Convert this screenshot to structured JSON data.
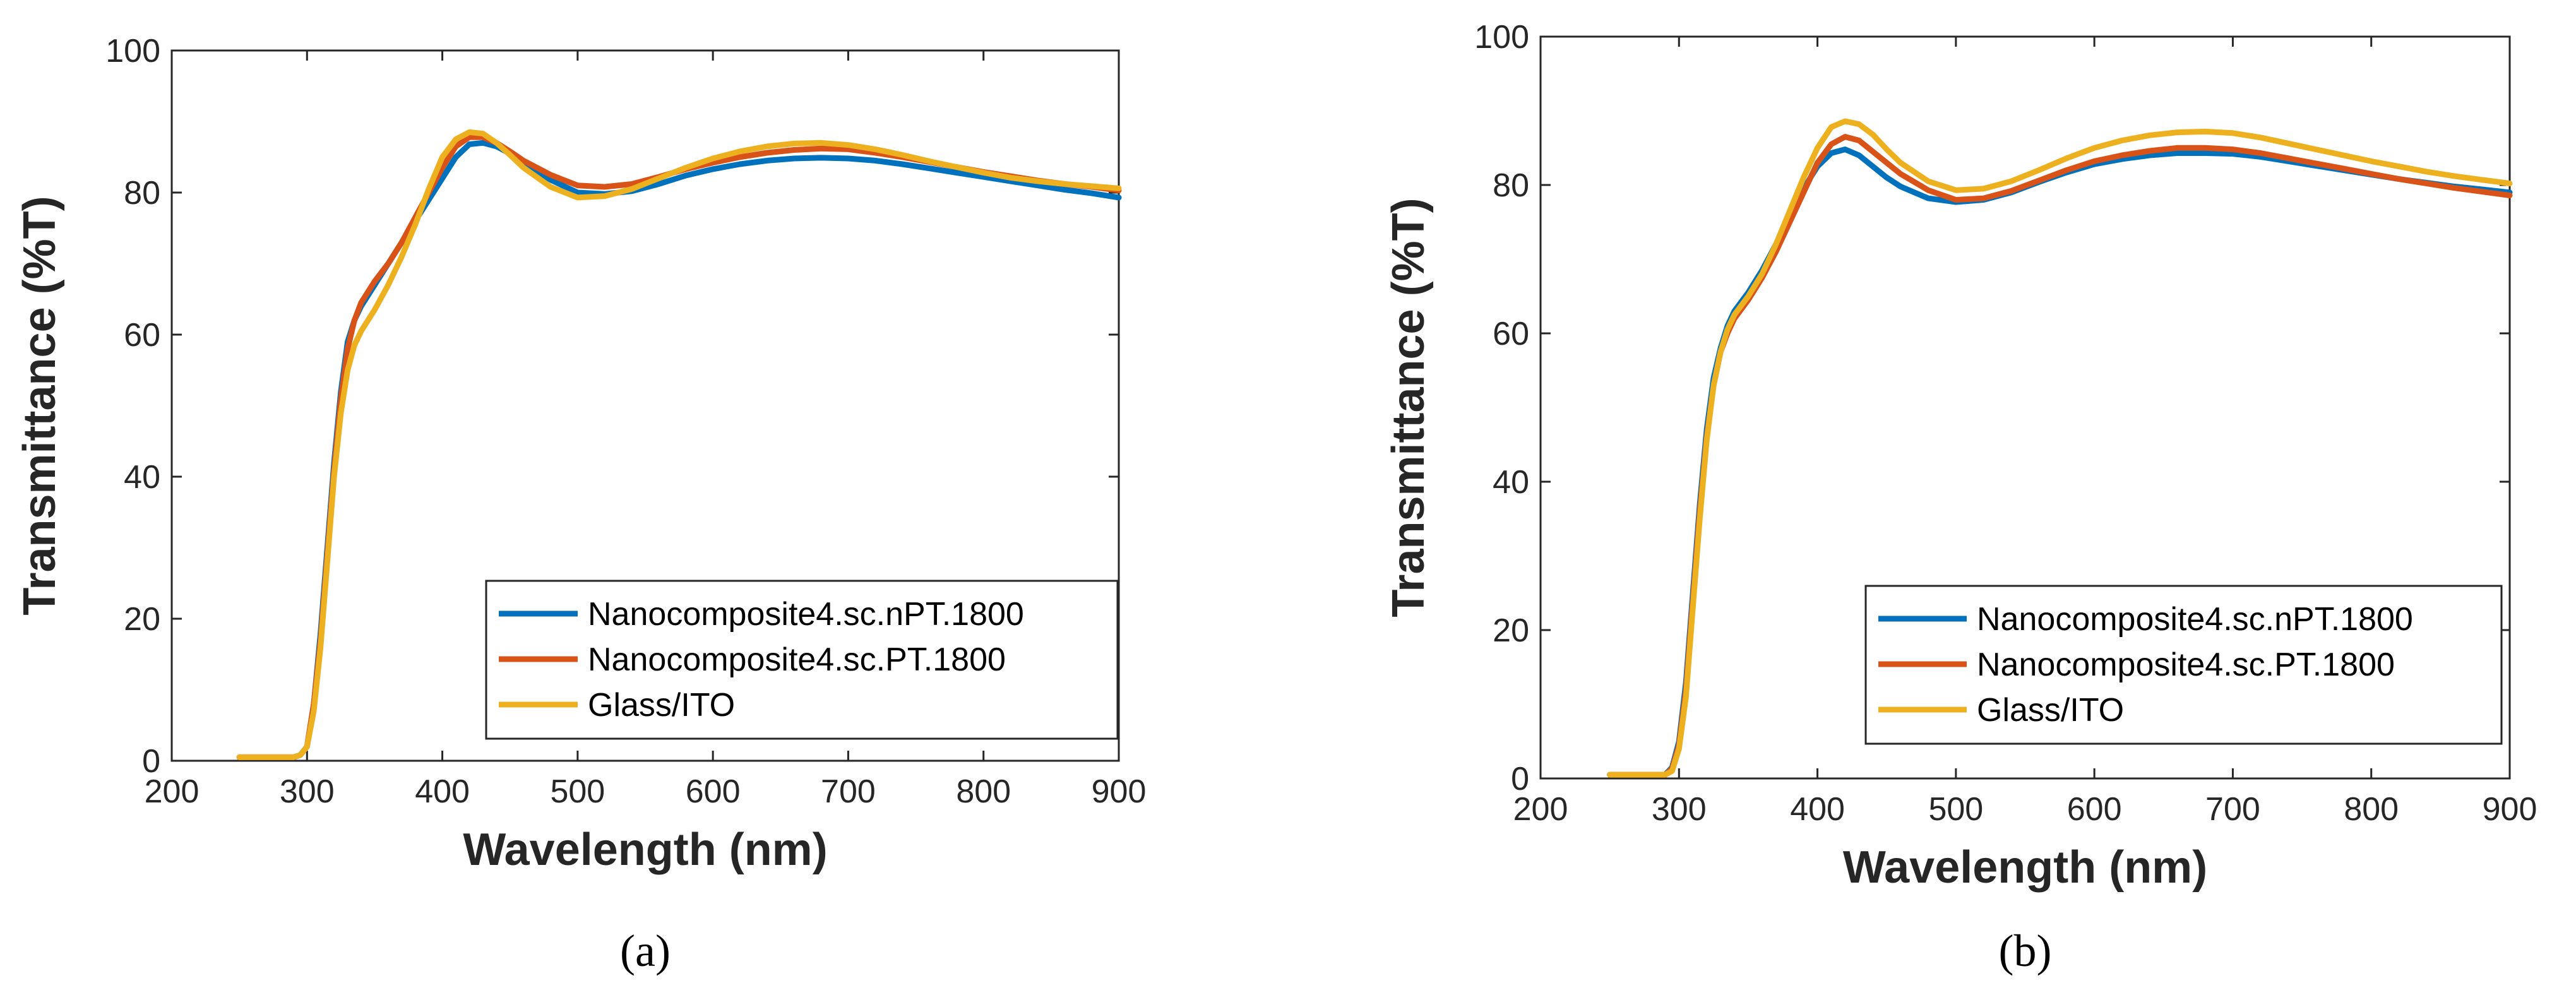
{
  "chart_data": [
    {
      "type": "line",
      "panel_label": "(a)",
      "title": "",
      "xlabel": "Wavelength (nm)",
      "ylabel": "Transmittance (%T)",
      "xlim": [
        200,
        900
      ],
      "ylim": [
        0,
        100
      ],
      "xticks": [
        200,
        300,
        400,
        500,
        600,
        700,
        800,
        900
      ],
      "yticks": [
        0,
        20,
        40,
        60,
        80,
        100
      ],
      "grid": false,
      "legend_position": "bottom-right",
      "series": [
        {
          "name": "Nanocomposite4.sc.nPT.1800",
          "color": "#0072BD",
          "x": [
            250,
            280,
            290,
            295,
            300,
            305,
            310,
            315,
            320,
            325,
            330,
            335,
            340,
            350,
            360,
            370,
            380,
            390,
            400,
            410,
            420,
            430,
            440,
            450,
            460,
            480,
            500,
            520,
            540,
            560,
            580,
            600,
            620,
            640,
            660,
            680,
            700,
            720,
            740,
            760,
            780,
            800,
            820,
            840,
            860,
            880,
            900
          ],
          "y": [
            0.5,
            0.5,
            0.5,
            0.8,
            2,
            8,
            18,
            30,
            42,
            52,
            59,
            62,
            64,
            67,
            70,
            73,
            76,
            79,
            82,
            85,
            86.8,
            87,
            86.5,
            85.5,
            84,
            81.8,
            80,
            79.8,
            80.2,
            81.2,
            82.4,
            83.3,
            84,
            84.5,
            84.8,
            84.9,
            84.8,
            84.5,
            84,
            83.4,
            82.8,
            82.2,
            81.6,
            81,
            80.4,
            79.9,
            79.3
          ]
        },
        {
          "name": "Nanocomposite4.sc.PT.1800",
          "color": "#D95319",
          "x": [
            250,
            280,
            290,
            295,
            300,
            305,
            310,
            315,
            320,
            325,
            330,
            335,
            340,
            350,
            360,
            370,
            380,
            390,
            400,
            410,
            420,
            430,
            440,
            450,
            460,
            480,
            500,
            520,
            540,
            560,
            580,
            600,
            620,
            640,
            660,
            680,
            700,
            720,
            740,
            760,
            780,
            800,
            820,
            840,
            860,
            880,
            900
          ],
          "y": [
            0.5,
            0.5,
            0.5,
            0.8,
            2,
            8,
            17,
            29,
            41,
            51,
            58,
            62,
            64.5,
            67.5,
            70,
            73,
            76.5,
            80,
            83.5,
            86.5,
            87.8,
            87.8,
            87,
            85.8,
            84.5,
            82.5,
            81,
            80.8,
            81.2,
            82.2,
            83.3,
            84.2,
            85,
            85.6,
            86,
            86.2,
            86.1,
            85.6,
            85,
            84.3,
            83.6,
            82.9,
            82.3,
            81.7,
            81.2,
            80.8,
            80.3
          ]
        },
        {
          "name": "Glass/ITO",
          "color": "#EDB120",
          "x": [
            250,
            280,
            290,
            295,
            300,
            305,
            310,
            315,
            320,
            325,
            330,
            335,
            340,
            350,
            360,
            370,
            380,
            390,
            400,
            410,
            420,
            430,
            440,
            450,
            460,
            480,
            500,
            520,
            540,
            560,
            580,
            600,
            620,
            640,
            660,
            680,
            700,
            720,
            740,
            760,
            780,
            800,
            820,
            840,
            860,
            880,
            900
          ],
          "y": [
            0.5,
            0.5,
            0.5,
            0.8,
            2,
            7,
            16,
            28,
            40,
            49,
            55,
            58.5,
            60.5,
            63.5,
            67,
            71,
            75.5,
            80.5,
            85,
            87.5,
            88.5,
            88.3,
            87,
            85.3,
            83.5,
            80.8,
            79.3,
            79.5,
            80.5,
            82,
            83.5,
            84.8,
            85.8,
            86.5,
            86.9,
            87,
            86.7,
            86.1,
            85.3,
            84.4,
            83.6,
            82.8,
            82.1,
            81.6,
            81.2,
            80.9,
            80.6
          ]
        }
      ]
    },
    {
      "type": "line",
      "panel_label": "(b)",
      "title": "",
      "xlabel": "Wavelength (nm)",
      "ylabel": "Transmittance (%T)",
      "xlim": [
        200,
        900
      ],
      "ylim": [
        0,
        100
      ],
      "xticks": [
        200,
        300,
        400,
        500,
        600,
        700,
        800,
        900
      ],
      "yticks": [
        0,
        20,
        40,
        60,
        80,
        100
      ],
      "grid": false,
      "legend_position": "bottom-right",
      "series": [
        {
          "name": "Nanocomposite4.sc.nPT.1800",
          "color": "#0072BD",
          "x": [
            250,
            280,
            290,
            295,
            300,
            305,
            310,
            315,
            320,
            325,
            330,
            335,
            340,
            350,
            360,
            370,
            380,
            390,
            400,
            410,
            420,
            430,
            440,
            450,
            460,
            480,
            500,
            520,
            540,
            560,
            580,
            600,
            620,
            640,
            660,
            680,
            700,
            720,
            740,
            760,
            780,
            800,
            820,
            840,
            860,
            880,
            900
          ],
          "y": [
            0.5,
            0.5,
            0.5,
            1.5,
            5,
            13,
            25,
            37,
            47,
            54,
            58,
            61,
            63,
            65.5,
            68.5,
            72,
            76,
            79.5,
            82.5,
            84.3,
            84.8,
            84,
            82.5,
            81,
            79.8,
            78.2,
            77.7,
            78,
            79,
            80.4,
            81.7,
            82.8,
            83.5,
            84,
            84.3,
            84.3,
            84.2,
            83.8,
            83.2,
            82.6,
            82,
            81.4,
            80.8,
            80.3,
            79.8,
            79.4,
            79
          ]
        },
        {
          "name": "Nanocomposite4.sc.PT.1800",
          "color": "#D95319",
          "x": [
            250,
            280,
            290,
            295,
            300,
            305,
            310,
            315,
            320,
            325,
            330,
            335,
            340,
            350,
            360,
            370,
            380,
            390,
            400,
            410,
            420,
            430,
            440,
            450,
            460,
            480,
            500,
            520,
            540,
            560,
            580,
            600,
            620,
            640,
            660,
            680,
            700,
            720,
            740,
            760,
            780,
            800,
            820,
            840,
            860,
            880,
            900
          ],
          "y": [
            0.5,
            0.5,
            0.5,
            1.3,
            4.5,
            12,
            24,
            36,
            46,
            53,
            57.5,
            60,
            62,
            64.5,
            67.5,
            71,
            75,
            79,
            83,
            85.5,
            86.5,
            86,
            84.5,
            83,
            81.5,
            79.3,
            78,
            78.2,
            79.2,
            80.6,
            82,
            83.2,
            84,
            84.6,
            85,
            85,
            84.8,
            84.3,
            83.6,
            82.9,
            82.2,
            81.5,
            80.8,
            80.2,
            79.6,
            79.1,
            78.6
          ]
        },
        {
          "name": "Glass/ITO",
          "color": "#EDB120",
          "x": [
            250,
            280,
            290,
            295,
            300,
            305,
            310,
            315,
            320,
            325,
            330,
            335,
            340,
            350,
            360,
            370,
            380,
            390,
            400,
            410,
            420,
            430,
            440,
            450,
            460,
            480,
            500,
            520,
            540,
            560,
            580,
            600,
            620,
            640,
            660,
            680,
            700,
            720,
            740,
            760,
            780,
            800,
            820,
            840,
            860,
            880,
            900
          ],
          "y": [
            0.5,
            0.5,
            0.5,
            1,
            4,
            11,
            23,
            35,
            45.5,
            53,
            57.5,
            60.5,
            62.5,
            65,
            68,
            72,
            76.5,
            81,
            85,
            87.8,
            88.6,
            88.2,
            86.8,
            84.8,
            83,
            80.5,
            79.3,
            79.5,
            80.5,
            82,
            83.6,
            85,
            86,
            86.7,
            87.1,
            87.2,
            87,
            86.4,
            85.6,
            84.8,
            84,
            83.2,
            82.5,
            81.8,
            81.2,
            80.7,
            80.2
          ]
        }
      ]
    }
  ]
}
